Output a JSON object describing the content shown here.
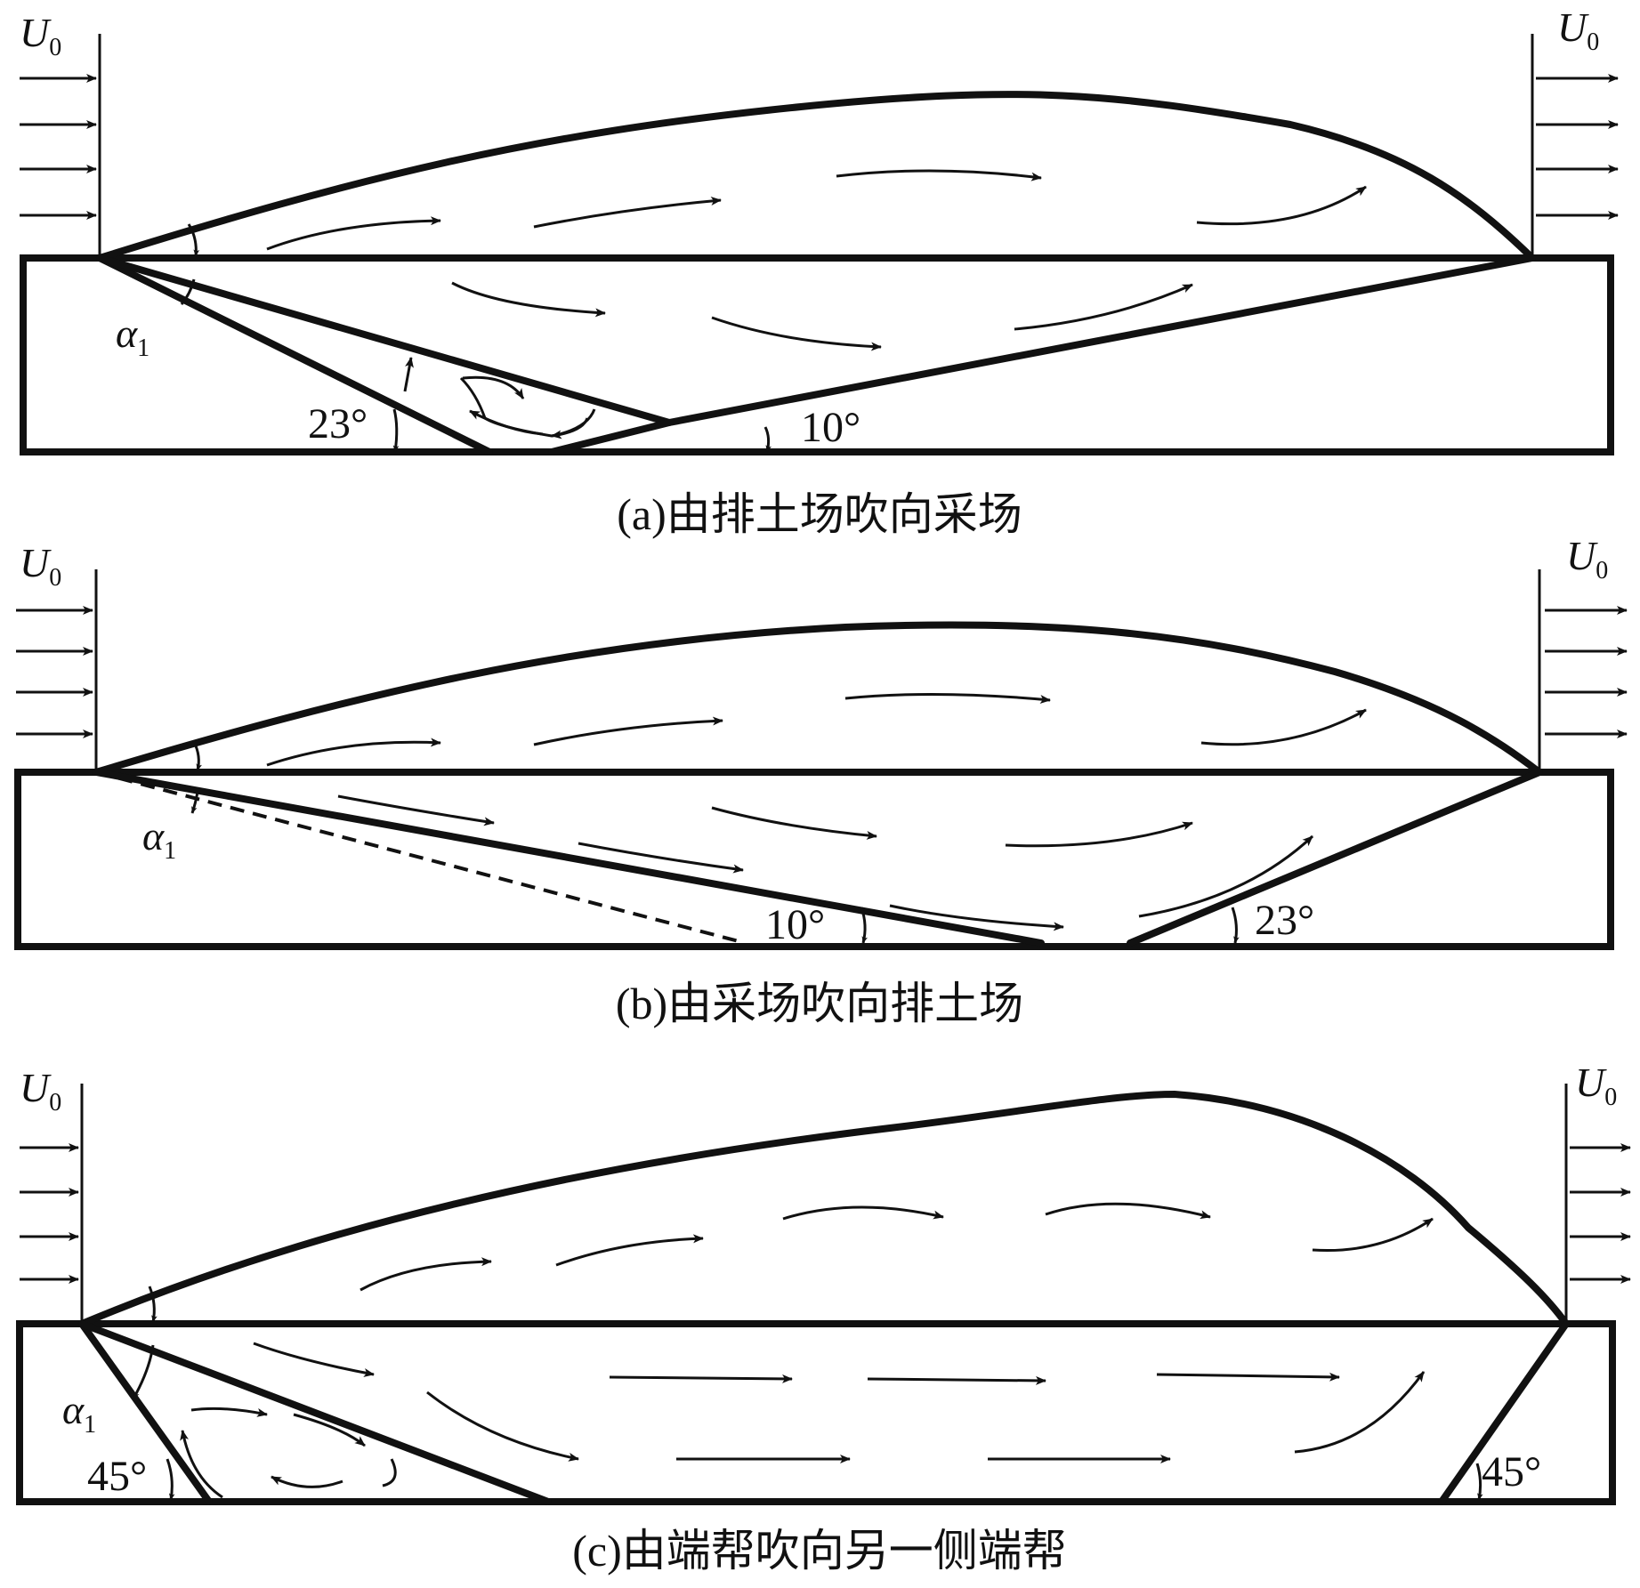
{
  "wind_symbol": "U",
  "wind_subscript": "0",
  "angle_symbol": "α",
  "angle_subscript": "1",
  "panels": [
    {
      "caption": "(a)由排土场吹向采场",
      "angles": [
        "23°",
        "10°"
      ]
    },
    {
      "caption": "(b)由采场吹向排土场",
      "angles": [
        "10°",
        "23°"
      ]
    },
    {
      "caption": "(c)由端帮吹向另一侧端帮",
      "angles": [
        "45°",
        "45°"
      ]
    }
  ]
}
